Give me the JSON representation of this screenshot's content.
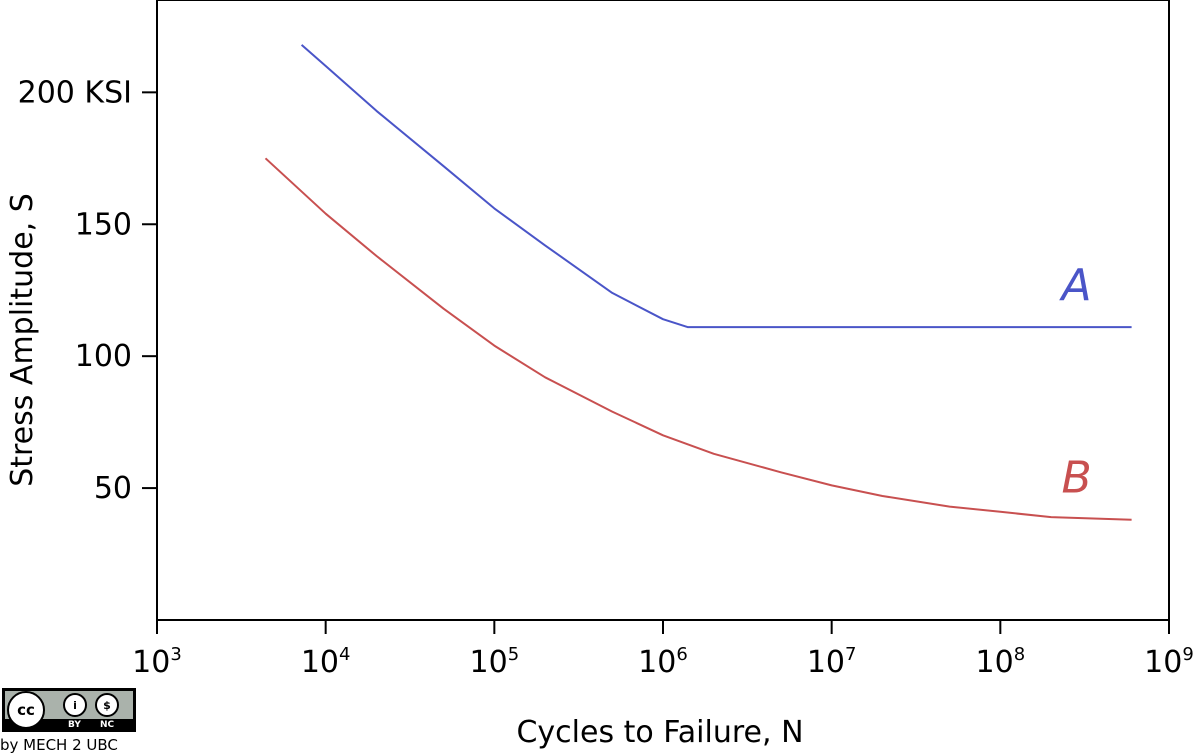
{
  "chart_data": {
    "type": "line",
    "xscale": "log",
    "xlabel": "Cycles to Failure, N",
    "ylabel": "Stress Amplitude, S",
    "xlim": [
      1000,
      1000000000
    ],
    "ylim": [
      0,
      235
    ],
    "x_ticks": [
      {
        "base": "10",
        "exp": "3"
      },
      {
        "base": "10",
        "exp": "4"
      },
      {
        "base": "10",
        "exp": "5"
      },
      {
        "base": "10",
        "exp": "6"
      },
      {
        "base": "10",
        "exp": "7"
      },
      {
        "base": "10",
        "exp": "8"
      },
      {
        "base": "10",
        "exp": "9"
      }
    ],
    "x_tick_values": [
      1000,
      10000,
      100000,
      1000000,
      10000000,
      100000000,
      1000000000
    ],
    "y_ticks": [
      {
        "value": 50,
        "label": "50"
      },
      {
        "value": 100,
        "label": "100"
      },
      {
        "value": 150,
        "label": "150"
      },
      {
        "value": 200,
        "label": "200 KSI"
      }
    ],
    "grid": false,
    "series": [
      {
        "name": "A",
        "color": "#4a55c8",
        "x": [
          7200,
          10000,
          20000,
          50000,
          100000,
          200000,
          500000,
          1000000,
          1400000,
          2000000,
          10000000,
          100000000,
          600000000
        ],
        "y": [
          218,
          210,
          193,
          172,
          156,
          142,
          124,
          114,
          111,
          111,
          111,
          111,
          111
        ]
      },
      {
        "name": "B",
        "color": "#c85050",
        "x": [
          4400,
          10000,
          20000,
          50000,
          100000,
          200000,
          500000,
          1000000,
          2000000,
          5000000,
          10000000,
          20000000,
          50000000,
          100000000,
          200000000,
          600000000
        ],
        "y": [
          175,
          154,
          138,
          118,
          104,
          92,
          79,
          70,
          63,
          56,
          51,
          47,
          43,
          41,
          39,
          38
        ]
      }
    ]
  },
  "license": {
    "cc_label": "cc",
    "by_label": "BY",
    "nc_label": "NC",
    "credit": "by MECH 2 UBC"
  }
}
